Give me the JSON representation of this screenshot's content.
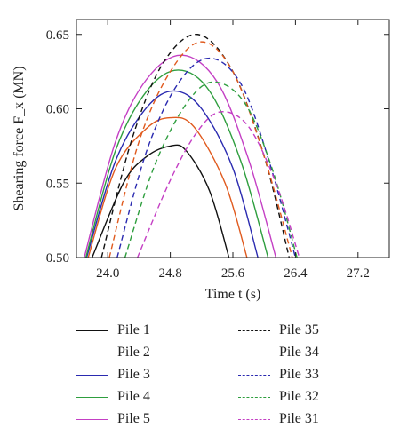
{
  "chart_data": {
    "type": "line",
    "title": "",
    "xlabel": "Time t (s)",
    "ylabel": "Shearing force F_x (MN)",
    "xlim": [
      23.6,
      27.6
    ],
    "ylim": [
      0.5,
      0.66
    ],
    "xticks": [
      24.0,
      24.8,
      25.6,
      26.4,
      27.2
    ],
    "xtick_labels": [
      "24.0",
      "24.8",
      "25.6",
      "26.4",
      "27.2"
    ],
    "yticks": [
      0.5,
      0.55,
      0.6,
      0.65
    ],
    "ytick_labels": [
      "0.50",
      "0.55",
      "0.60",
      "0.65"
    ],
    "grid": false,
    "legend_position": "below",
    "series": [
      {
        "name": "Pile 1",
        "color": "#111111",
        "style": "solid",
        "x": [
          23.8,
          24.2,
          24.5,
          24.8,
          25.0,
          25.3,
          25.55
        ],
        "y": [
          0.5,
          0.55,
          0.568,
          0.575,
          0.572,
          0.545,
          0.5
        ]
      },
      {
        "name": "Pile 2",
        "color": "#e05a1e",
        "style": "solid",
        "x": [
          23.75,
          24.1,
          24.5,
          24.8,
          25.1,
          25.5,
          25.78
        ],
        "y": [
          0.5,
          0.56,
          0.587,
          0.594,
          0.588,
          0.55,
          0.5
        ]
      },
      {
        "name": "Pile 3",
        "color": "#2a2ab0",
        "style": "solid",
        "x": [
          23.73,
          24.1,
          24.5,
          24.85,
          25.2,
          25.6,
          25.92
        ],
        "y": [
          0.5,
          0.565,
          0.601,
          0.612,
          0.6,
          0.56,
          0.5
        ]
      },
      {
        "name": "Pile 4",
        "color": "#2e9e3e",
        "style": "solid",
        "x": [
          23.72,
          24.1,
          24.5,
          24.9,
          25.3,
          25.7,
          26.05
        ],
        "y": [
          0.5,
          0.572,
          0.612,
          0.626,
          0.612,
          0.565,
          0.5
        ]
      },
      {
        "name": "Pile 5",
        "color": "#c43fc4",
        "style": "solid",
        "x": [
          23.7,
          24.1,
          24.5,
          24.95,
          25.4,
          25.8,
          26.15
        ],
        "y": [
          0.5,
          0.578,
          0.62,
          0.636,
          0.618,
          0.566,
          0.5
        ]
      },
      {
        "name": "Pile 35",
        "color": "#111111",
        "style": "dashed",
        "x": [
          23.92,
          24.3,
          24.7,
          25.15,
          25.6,
          26.0,
          26.32
        ],
        "y": [
          0.5,
          0.578,
          0.63,
          0.65,
          0.625,
          0.568,
          0.5
        ]
      },
      {
        "name": "Pile 34",
        "color": "#e05a1e",
        "style": "dashed",
        "x": [
          24.02,
          24.4,
          24.8,
          25.2,
          25.6,
          26.0,
          26.36
        ],
        "y": [
          0.5,
          0.578,
          0.625,
          0.645,
          0.625,
          0.568,
          0.5
        ]
      },
      {
        "name": "Pile 33",
        "color": "#2a2ab0",
        "style": "dashed",
        "x": [
          24.12,
          24.5,
          24.9,
          25.3,
          25.7,
          26.05,
          26.4
        ],
        "y": [
          0.5,
          0.572,
          0.617,
          0.634,
          0.617,
          0.567,
          0.5
        ]
      },
      {
        "name": "Pile 32",
        "color": "#2e9e3e",
        "style": "dashed",
        "x": [
          24.22,
          24.6,
          25.0,
          25.35,
          25.75,
          26.1,
          26.42
        ],
        "y": [
          0.5,
          0.562,
          0.603,
          0.618,
          0.604,
          0.56,
          0.5
        ]
      },
      {
        "name": "Pile 31",
        "color": "#c43fc4",
        "style": "dashed",
        "x": [
          24.38,
          24.8,
          25.15,
          25.45,
          25.8,
          26.15,
          26.45
        ],
        "y": [
          0.5,
          0.552,
          0.585,
          0.598,
          0.588,
          0.55,
          0.5
        ]
      }
    ]
  }
}
